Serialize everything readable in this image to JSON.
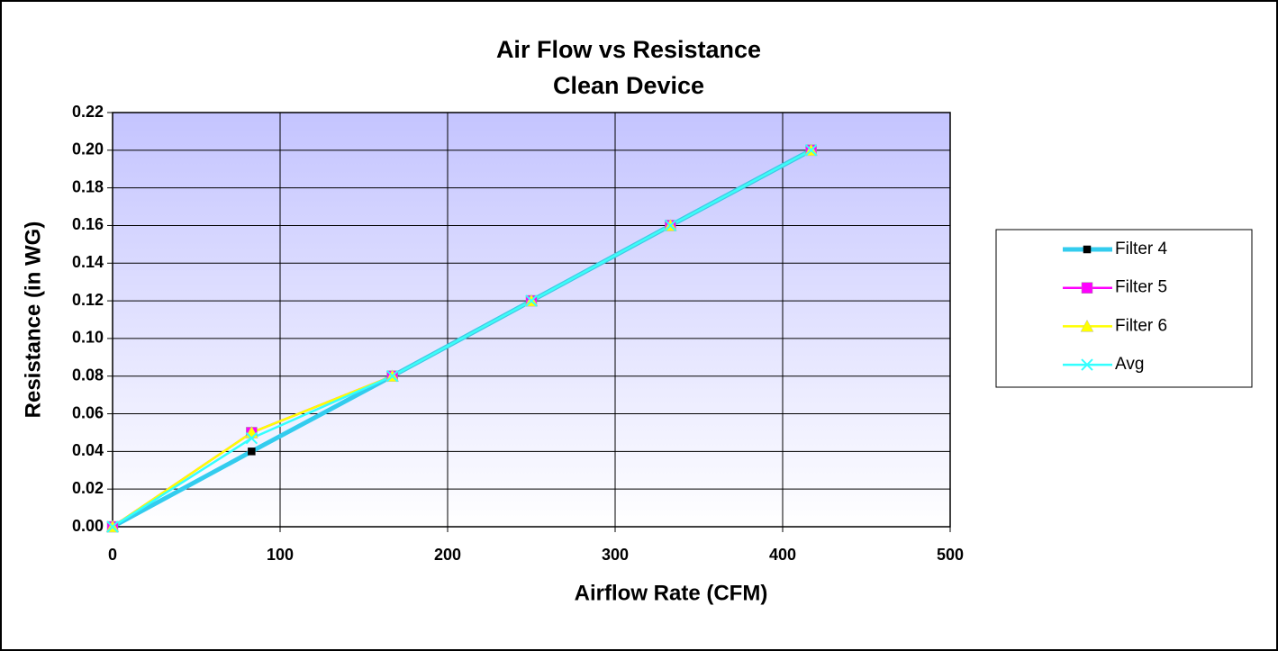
{
  "chart_data": {
    "type": "line",
    "title": "Air Flow vs Resistance",
    "subtitle": "Clean Device",
    "x_label": "Airflow Rate (CFM)",
    "y_label": "Resistance (in WG)",
    "x": [
      0,
      83,
      167,
      250,
      333,
      417
    ],
    "series": [
      {
        "name": "Filter 4",
        "color": "#33ccee",
        "marker_color": "#000000",
        "marker": "square",
        "values": [
          0,
          0.04,
          0.08,
          0.12,
          0.16,
          0.2
        ]
      },
      {
        "name": "Filter 5",
        "color": "#ff00ff",
        "marker_color": "#ff00ff",
        "marker": "square",
        "values": [
          0,
          0.05,
          0.08,
          0.12,
          0.16,
          0.2
        ]
      },
      {
        "name": "Filter 6",
        "color": "#ffff00",
        "marker_color": "#ffff00",
        "marker": "triangle",
        "values": [
          0,
          0.05,
          0.08,
          0.12,
          0.16,
          0.2
        ]
      },
      {
        "name": "Avg",
        "color": "#33ffff",
        "marker_color": "#33ffff",
        "marker": "x",
        "values": [
          0,
          0.047,
          0.08,
          0.12,
          0.16,
          0.2
        ]
      }
    ],
    "xlim": [
      0,
      500
    ],
    "xticks": [
      0,
      100,
      200,
      300,
      400,
      500
    ],
    "ylim": [
      0,
      0.22
    ],
    "yticks": [
      {
        "value": 0,
        "label": "0.00"
      },
      {
        "value": 0.02,
        "label": "0.02"
      },
      {
        "value": 0.04,
        "label": "0.04"
      },
      {
        "value": 0.06,
        "label": "0.06"
      },
      {
        "value": 0.08,
        "label": "0.08"
      },
      {
        "value": 0.1,
        "label": "0.10"
      },
      {
        "value": 0.12,
        "label": "0.12"
      },
      {
        "value": 0.14,
        "label": "0.14"
      },
      {
        "value": 0.16,
        "label": "0.16"
      },
      {
        "value": 0.18,
        "label": "0.18"
      },
      {
        "value": 0.2,
        "label": "0.20"
      },
      {
        "value": 0.22,
        "label": "0.22"
      }
    ],
    "grid": true,
    "legend": "right"
  }
}
